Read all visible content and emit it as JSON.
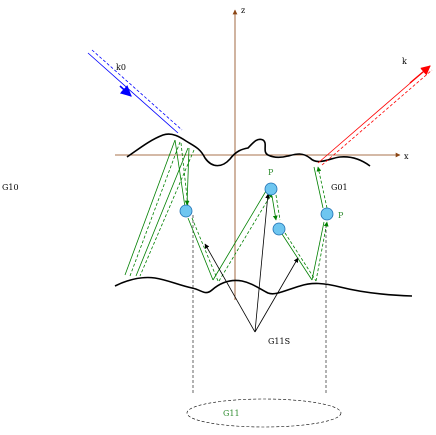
{
  "labels": {
    "z_axis": "z",
    "x_axis": "x",
    "incident_wave": "k0",
    "scattered_wave": "k",
    "left_region": "G10",
    "right_region": "G01",
    "particle_top": "P",
    "particle_right": "P",
    "sum_label": "G11S",
    "bottom_ellipse": "G11"
  },
  "colors": {
    "axis": "#8b4513",
    "surface": "#000000",
    "incident": "#0000ff",
    "scattered": "#ff0000",
    "path": "#008000",
    "particle_fill": "#6ec6f0",
    "particle_stroke": "#1f6fb2",
    "label_green": "#2e8b2e"
  }
}
